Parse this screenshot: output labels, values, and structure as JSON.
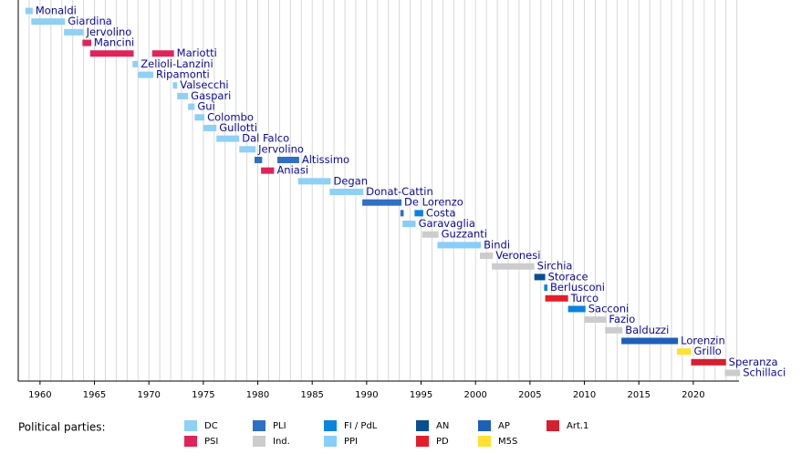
{
  "chart_data": {
    "type": "timeline",
    "xlim": [
      1958,
      2024.2
    ],
    "xticks": [
      1960,
      1965,
      1970,
      1975,
      1980,
      1985,
      1990,
      1995,
      2000,
      2005,
      2010,
      2015,
      2020
    ],
    "minor_xticks": [
      1959,
      1960,
      1961,
      1962,
      1963,
      1964,
      1965,
      1966,
      1967,
      1968,
      1969,
      1970,
      1971,
      1972,
      1973,
      1974,
      1975,
      1976,
      1977,
      1978,
      1979,
      1980,
      1981,
      1982,
      1983,
      1984,
      1985,
      1986,
      1987,
      1988,
      1989,
      1990,
      1991,
      1992,
      1993,
      1994,
      1995,
      1996,
      1997,
      1998,
      1999,
      2000,
      2001,
      2002,
      2003,
      2004,
      2005,
      2006,
      2007,
      2008,
      2009,
      2010,
      2011,
      2012,
      2013,
      2014,
      2015,
      2016,
      2017,
      2018,
      2019,
      2020,
      2021,
      2022,
      2023,
      2024
    ],
    "grid": true,
    "legend_title": "Political parties:",
    "parties": [
      {
        "name": "DC",
        "color": "#8fd0f5"
      },
      {
        "name": "PSI",
        "color": "#e0245a"
      },
      {
        "name": "PLI",
        "color": "#2f6fc4"
      },
      {
        "name": "Ind.",
        "color": "#cccccc"
      },
      {
        "name": "FI / PdL",
        "color": "#0a84e0"
      },
      {
        "name": "PPI",
        "color": "#87cefa"
      },
      {
        "name": "AN",
        "color": "#0a4f8f"
      },
      {
        "name": "PD",
        "color": "#e31e2a"
      },
      {
        "name": "AP",
        "color": "#1e5fb8"
      },
      {
        "name": "M5S",
        "color": "#ffe033"
      },
      {
        "name": "Art.1",
        "color": "#d42030"
      }
    ],
    "rows": [
      {
        "name": "Monaldi",
        "bars": [
          {
            "start": 1958.66,
            "end": 1959.33,
            "party": "DC"
          }
        ]
      },
      {
        "name": "Giardina",
        "bars": [
          {
            "start": 1959.2,
            "end": 1962.3,
            "party": "DC"
          }
        ]
      },
      {
        "name": "Jervolino",
        "bars": [
          {
            "start": 1962.2,
            "end": 1964.0,
            "party": "DC"
          }
        ]
      },
      {
        "name": "Mancini",
        "bars": [
          {
            "start": 1963.9,
            "end": 1964.7,
            "party": "PSI"
          }
        ]
      },
      {
        "name": "Mariotti",
        "bars": [
          {
            "start": 1964.6,
            "end": 1968.6,
            "party": "PSI"
          },
          {
            "start": 1970.3,
            "end": 1972.3,
            "party": "PSI"
          }
        ]
      },
      {
        "name": "Zelioli-Lanzini",
        "bars": [
          {
            "start": 1968.5,
            "end": 1969.0,
            "party": "DC"
          }
        ]
      },
      {
        "name": "Ripamonti",
        "bars": [
          {
            "start": 1969.0,
            "end": 1970.4,
            "party": "DC"
          }
        ]
      },
      {
        "name": "Valsecchi",
        "bars": [
          {
            "start": 1972.2,
            "end": 1972.6,
            "party": "DC"
          }
        ]
      },
      {
        "name": "Gaspari",
        "bars": [
          {
            "start": 1972.6,
            "end": 1973.6,
            "party": "DC"
          }
        ]
      },
      {
        "name": "Gui",
        "bars": [
          {
            "start": 1973.6,
            "end": 1974.2,
            "party": "DC"
          }
        ]
      },
      {
        "name": "Colombo",
        "bars": [
          {
            "start": 1974.2,
            "end": 1975.1,
            "party": "DC"
          }
        ]
      },
      {
        "name": "Gullotti",
        "bars": [
          {
            "start": 1975.0,
            "end": 1976.2,
            "party": "DC"
          }
        ]
      },
      {
        "name": "Dal Falco",
        "bars": [
          {
            "start": 1976.2,
            "end": 1978.3,
            "party": "DC"
          }
        ]
      },
      {
        "name": "Jervolino",
        "bars": [
          {
            "start": 1978.3,
            "end": 1979.8,
            "party": "DC"
          }
        ]
      },
      {
        "name": "Altissimo",
        "bars": [
          {
            "start": 1979.7,
            "end": 1980.4,
            "party": "PLI"
          },
          {
            "start": 1981.8,
            "end": 1983.8,
            "party": "PLI"
          }
        ]
      },
      {
        "name": "Aniasi",
        "bars": [
          {
            "start": 1980.3,
            "end": 1981.5,
            "party": "PSI"
          }
        ]
      },
      {
        "name": "Degan",
        "bars": [
          {
            "start": 1983.7,
            "end": 1986.7,
            "party": "DC"
          }
        ]
      },
      {
        "name": "Donat-Cattin",
        "bars": [
          {
            "start": 1986.6,
            "end": 1989.7,
            "party": "DC"
          }
        ]
      },
      {
        "name": "De Lorenzo",
        "bars": [
          {
            "start": 1989.6,
            "end": 1993.2,
            "party": "PLI"
          }
        ]
      },
      {
        "name": "Costa",
        "bars": [
          {
            "start": 1993.1,
            "end": 1993.4,
            "party": "PLI"
          },
          {
            "start": 1994.4,
            "end": 1995.2,
            "party": "FI / PdL"
          }
        ]
      },
      {
        "name": "Garavaglia",
        "bars": [
          {
            "start": 1993.3,
            "end": 1994.5,
            "party": "PPI"
          }
        ]
      },
      {
        "name": "Guzzanti",
        "bars": [
          {
            "start": 1995.1,
            "end": 1996.6,
            "party": "Ind."
          }
        ]
      },
      {
        "name": "Bindi",
        "bars": [
          {
            "start": 1996.5,
            "end": 2000.5,
            "party": "PPI"
          }
        ]
      },
      {
        "name": "Veronesi",
        "bars": [
          {
            "start": 2000.4,
            "end": 2001.6,
            "party": "Ind."
          }
        ]
      },
      {
        "name": "Sirchia",
        "bars": [
          {
            "start": 2001.5,
            "end": 2005.4,
            "party": "Ind."
          }
        ]
      },
      {
        "name": "Storace",
        "bars": [
          {
            "start": 2005.4,
            "end": 2006.4,
            "party": "AN"
          }
        ]
      },
      {
        "name": "Berlusconi",
        "bars": [
          {
            "start": 2006.3,
            "end": 2006.6,
            "party": "FI / PdL"
          }
        ]
      },
      {
        "name": "Turco",
        "bars": [
          {
            "start": 2006.4,
            "end": 2008.5,
            "party": "PD"
          }
        ]
      },
      {
        "name": "Sacconi",
        "bars": [
          {
            "start": 2008.5,
            "end": 2010.1,
            "party": "FI / PdL"
          }
        ]
      },
      {
        "name": "Fazio",
        "bars": [
          {
            "start": 2010.0,
            "end": 2012.0,
            "party": "Ind."
          }
        ]
      },
      {
        "name": "Balduzzi",
        "bars": [
          {
            "start": 2011.9,
            "end": 2013.5,
            "party": "Ind."
          }
        ]
      },
      {
        "name": "Lorenzin",
        "bars": [
          {
            "start": 2013.4,
            "end": 2018.6,
            "party": "AP"
          }
        ]
      },
      {
        "name": "Grillo",
        "bars": [
          {
            "start": 2018.5,
            "end": 2019.8,
            "party": "M5S"
          }
        ]
      },
      {
        "name": "Speranza",
        "bars": [
          {
            "start": 2019.8,
            "end": 2023.0,
            "party": "Art.1"
          }
        ]
      },
      {
        "name": "Schillaci",
        "bars": [
          {
            "start": 2022.9,
            "end": 2024.3,
            "party": "Ind."
          }
        ]
      }
    ]
  }
}
